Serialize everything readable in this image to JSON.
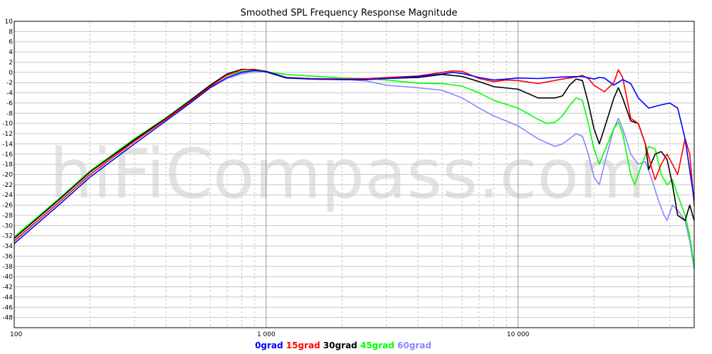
{
  "chart_data": {
    "type": "line",
    "title": "Smoothed SPL Frequency Response Magnitude",
    "watermark": "hiFiCompass.com",
    "x_scale": "log",
    "xlim": [
      100,
      50000
    ],
    "ylim": [
      -50,
      10
    ],
    "x_ticks": [
      {
        "value": 100,
        "label": "100"
      },
      {
        "value": 1000,
        "label": "1 000"
      },
      {
        "value": 10000,
        "label": "10 000"
      }
    ],
    "y_ticks": [
      {
        "value": 10,
        "label": "10"
      },
      {
        "value": 8,
        "label": "8"
      },
      {
        "value": 6,
        "label": "6"
      },
      {
        "value": 4,
        "label": "4"
      },
      {
        "value": 2,
        "label": "2"
      },
      {
        "value": 0,
        "label": "0"
      },
      {
        "value": -2,
        "label": "-2"
      },
      {
        "value": -4,
        "label": "-4"
      },
      {
        "value": -6,
        "label": "-6"
      },
      {
        "value": -8,
        "label": "-8"
      },
      {
        "value": -10,
        "label": "-10"
      },
      {
        "value": -12,
        "label": "-12"
      },
      {
        "value": -14,
        "label": "-14"
      },
      {
        "value": -16,
        "label": "-16"
      },
      {
        "value": -18,
        "label": "-18"
      },
      {
        "value": -20,
        "label": "-20"
      },
      {
        "value": -22,
        "label": "-22"
      },
      {
        "value": -24,
        "label": "-24"
      },
      {
        "value": -26,
        "label": "-26"
      },
      {
        "value": -28,
        "label": "-28"
      },
      {
        "value": -30,
        "label": "-30"
      },
      {
        "value": -32,
        "label": "-32"
      },
      {
        "value": -34,
        "label": "-34"
      },
      {
        "value": -36,
        "label": "-36"
      },
      {
        "value": -38,
        "label": "-38"
      },
      {
        "value": -40,
        "label": "-40"
      },
      {
        "value": -42,
        "label": "-42"
      },
      {
        "value": -44,
        "label": "-44"
      },
      {
        "value": -46,
        "label": "-46"
      },
      {
        "value": -48,
        "label": "-48"
      }
    ],
    "grid": true,
    "legend_position": "bottom-center",
    "series": [
      {
        "name": "0grad",
        "color": "#0000ff",
        "points": [
          [
            100,
            -33.5
          ],
          [
            150,
            -26
          ],
          [
            200,
            -20.5
          ],
          [
            300,
            -14
          ],
          [
            400,
            -9.5
          ],
          [
            500,
            -6
          ],
          [
            600,
            -3
          ],
          [
            700,
            -1
          ],
          [
            800,
            0
          ],
          [
            900,
            0.4
          ],
          [
            1000,
            0.2
          ],
          [
            1200,
            -1
          ],
          [
            1500,
            -1.3
          ],
          [
            2000,
            -1.4
          ],
          [
            2500,
            -1.4
          ],
          [
            3000,
            -1.2
          ],
          [
            4000,
            -0.8
          ],
          [
            5000,
            -0.3
          ],
          [
            5500,
            0
          ],
          [
            6000,
            -0.2
          ],
          [
            7000,
            -1
          ],
          [
            8000,
            -1.5
          ],
          [
            9000,
            -1.3
          ],
          [
            10000,
            -1.1
          ],
          [
            12000,
            -1.2
          ],
          [
            15000,
            -0.9
          ],
          [
            18000,
            -0.8
          ],
          [
            20000,
            -1.3
          ],
          [
            21000,
            -1
          ],
          [
            22000,
            -1.1
          ],
          [
            24000,
            -2.5
          ],
          [
            26000,
            -1.4
          ],
          [
            28000,
            -2.2
          ],
          [
            30000,
            -5
          ],
          [
            33000,
            -7
          ],
          [
            36000,
            -6.5
          ],
          [
            40000,
            -6
          ],
          [
            43000,
            -7
          ],
          [
            46000,
            -13
          ],
          [
            50000,
            -25
          ]
        ]
      },
      {
        "name": "15grad",
        "color": "#ff0000",
        "points": [
          [
            100,
            -33
          ],
          [
            150,
            -25.5
          ],
          [
            200,
            -20
          ],
          [
            300,
            -13.5
          ],
          [
            400,
            -9.2
          ],
          [
            500,
            -5.7
          ],
          [
            600,
            -2.8
          ],
          [
            700,
            -0.5
          ],
          [
            800,
            0.5
          ],
          [
            900,
            0.6
          ],
          [
            1000,
            0.2
          ],
          [
            1200,
            -1
          ],
          [
            1500,
            -1.2
          ],
          [
            2000,
            -1.3
          ],
          [
            2500,
            -1.2
          ],
          [
            3000,
            -1
          ],
          [
            4000,
            -0.7
          ],
          [
            5000,
            0
          ],
          [
            5500,
            0.3
          ],
          [
            6000,
            0.2
          ],
          [
            7000,
            -1.2
          ],
          [
            8000,
            -1.8
          ],
          [
            9000,
            -1.5
          ],
          [
            10000,
            -1.6
          ],
          [
            12000,
            -2.2
          ],
          [
            15000,
            -1.3
          ],
          [
            17000,
            -0.9
          ],
          [
            18000,
            -0.6
          ],
          [
            19000,
            -1.2
          ],
          [
            20000,
            -2.5
          ],
          [
            22000,
            -3.8
          ],
          [
            24000,
            -2
          ],
          [
            25000,
            0.5
          ],
          [
            26000,
            -1
          ],
          [
            27000,
            -5
          ],
          [
            28000,
            -9
          ],
          [
            30000,
            -10
          ],
          [
            32000,
            -14
          ],
          [
            34000,
            -19
          ],
          [
            35000,
            -21
          ],
          [
            37000,
            -18
          ],
          [
            39000,
            -16
          ],
          [
            41000,
            -18
          ],
          [
            43000,
            -20
          ],
          [
            46000,
            -13
          ],
          [
            48000,
            -16
          ],
          [
            50000,
            -26
          ]
        ]
      },
      {
        "name": "30grad",
        "color": "#000000",
        "points": [
          [
            100,
            -32.5
          ],
          [
            150,
            -25
          ],
          [
            200,
            -19.5
          ],
          [
            300,
            -13.2
          ],
          [
            400,
            -9
          ],
          [
            500,
            -5.5
          ],
          [
            600,
            -2.5
          ],
          [
            700,
            -0.3
          ],
          [
            800,
            0.6
          ],
          [
            900,
            0.5
          ],
          [
            1000,
            0.1
          ],
          [
            1200,
            -1.1
          ],
          [
            1500,
            -1.3
          ],
          [
            2000,
            -1.4
          ],
          [
            2500,
            -1.4
          ],
          [
            3000,
            -1.2
          ],
          [
            4000,
            -1
          ],
          [
            5000,
            -0.4
          ],
          [
            6000,
            -0.8
          ],
          [
            7000,
            -1.8
          ],
          [
            8000,
            -2.8
          ],
          [
            10000,
            -3.3
          ],
          [
            12000,
            -5
          ],
          [
            14000,
            -5
          ],
          [
            15000,
            -4.6
          ],
          [
            16000,
            -2.5
          ],
          [
            17000,
            -1.3
          ],
          [
            18000,
            -1.6
          ],
          [
            19000,
            -6
          ],
          [
            20000,
            -11
          ],
          [
            21000,
            -14
          ],
          [
            22000,
            -11
          ],
          [
            24000,
            -5
          ],
          [
            25000,
            -3
          ],
          [
            26000,
            -5
          ],
          [
            28000,
            -9.5
          ],
          [
            30000,
            -10
          ],
          [
            32000,
            -14
          ],
          [
            33000,
            -19
          ],
          [
            35000,
            -16
          ],
          [
            37000,
            -15.5
          ],
          [
            39000,
            -17
          ],
          [
            41000,
            -22
          ],
          [
            43000,
            -28
          ],
          [
            46000,
            -29
          ],
          [
            48000,
            -26
          ],
          [
            50000,
            -29
          ]
        ]
      },
      {
        "name": "45grad",
        "color": "#00ff00",
        "points": [
          [
            100,
            -32.2
          ],
          [
            150,
            -24.8
          ],
          [
            200,
            -19.3
          ],
          [
            300,
            -13
          ],
          [
            400,
            -8.9
          ],
          [
            500,
            -5.4
          ],
          [
            600,
            -2.5
          ],
          [
            700,
            -0.6
          ],
          [
            800,
            0.2
          ],
          [
            900,
            0.3
          ],
          [
            1000,
            0.1
          ],
          [
            1200,
            -0.4
          ],
          [
            1500,
            -0.7
          ],
          [
            2000,
            -1.1
          ],
          [
            2500,
            -1.2
          ],
          [
            3000,
            -1.5
          ],
          [
            4000,
            -2.1
          ],
          [
            5000,
            -2.2
          ],
          [
            6000,
            -2.7
          ],
          [
            7000,
            -4
          ],
          [
            8000,
            -5.5
          ],
          [
            10000,
            -7
          ],
          [
            12000,
            -9.2
          ],
          [
            13000,
            -10
          ],
          [
            14000,
            -9.8
          ],
          [
            15000,
            -8.5
          ],
          [
            16000,
            -6.5
          ],
          [
            17000,
            -5
          ],
          [
            18000,
            -5.5
          ],
          [
            19000,
            -10
          ],
          [
            20000,
            -15
          ],
          [
            21000,
            -18
          ],
          [
            22000,
            -15.5
          ],
          [
            24000,
            -11
          ],
          [
            25000,
            -9.8
          ],
          [
            26000,
            -12
          ],
          [
            28000,
            -20
          ],
          [
            29000,
            -22
          ],
          [
            31000,
            -18
          ],
          [
            33000,
            -14.5
          ],
          [
            35000,
            -15
          ],
          [
            37000,
            -20
          ],
          [
            39000,
            -22
          ],
          [
            41000,
            -21
          ],
          [
            43000,
            -24
          ],
          [
            46000,
            -28
          ],
          [
            48000,
            -32
          ],
          [
            50000,
            -38
          ]
        ]
      },
      {
        "name": "60grad",
        "color": "#8888ff",
        "points": [
          [
            100,
            -32.5
          ],
          [
            150,
            -25
          ],
          [
            200,
            -19.5
          ],
          [
            300,
            -13.3
          ],
          [
            400,
            -9.2
          ],
          [
            500,
            -5.8
          ],
          [
            600,
            -3
          ],
          [
            700,
            -1.2
          ],
          [
            800,
            -0.3
          ],
          [
            900,
            0.1
          ],
          [
            1000,
            0.1
          ],
          [
            1200,
            -1
          ],
          [
            1500,
            -1.2
          ],
          [
            2000,
            -1.3
          ],
          [
            2500,
            -1.7
          ],
          [
            3000,
            -2.5
          ],
          [
            4000,
            -3
          ],
          [
            5000,
            -3.5
          ],
          [
            6000,
            -5
          ],
          [
            7000,
            -7
          ],
          [
            8000,
            -8.5
          ],
          [
            10000,
            -10.5
          ],
          [
            12000,
            -13
          ],
          [
            14000,
            -14.5
          ],
          [
            15000,
            -14
          ],
          [
            16000,
            -13
          ],
          [
            17000,
            -12
          ],
          [
            18000,
            -12.5
          ],
          [
            19000,
            -16
          ],
          [
            20000,
            -20.5
          ],
          [
            21000,
            -22
          ],
          [
            22000,
            -18
          ],
          [
            24000,
            -11
          ],
          [
            25000,
            -9
          ],
          [
            26000,
            -11
          ],
          [
            28000,
            -16
          ],
          [
            30000,
            -18
          ],
          [
            32000,
            -17.5
          ],
          [
            34000,
            -21
          ],
          [
            36000,
            -25
          ],
          [
            38000,
            -28
          ],
          [
            39000,
            -29
          ],
          [
            41000,
            -26
          ],
          [
            43000,
            -27
          ],
          [
            46000,
            -29
          ],
          [
            48000,
            -33
          ],
          [
            50000,
            -38.5
          ]
        ]
      }
    ]
  }
}
